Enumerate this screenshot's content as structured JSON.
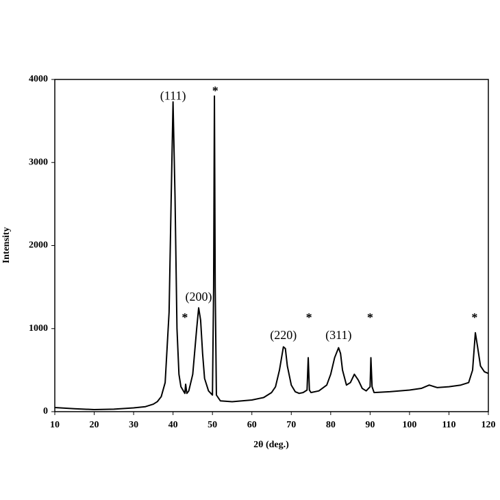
{
  "chart_data": {
    "type": "line",
    "xlabel": "2θ (deg.)",
    "ylabel": "Intensity",
    "x": [
      10,
      15,
      20,
      25,
      30,
      33,
      35,
      36,
      37,
      38,
      39,
      39.5,
      40,
      40.5,
      41,
      41.5,
      42,
      43,
      43.2,
      43.5,
      44,
      45,
      46,
      46.5,
      47,
      47.5,
      48,
      49,
      50,
      50.3,
      50.5,
      50.7,
      51,
      52,
      55,
      60,
      63,
      65,
      66,
      67,
      68,
      68.5,
      69,
      70,
      71,
      72,
      73,
      74,
      74.3,
      74.6,
      75,
      77,
      79,
      80,
      81,
      82,
      82.5,
      83,
      84,
      85,
      86,
      87,
      88,
      89,
      90,
      90.2,
      90.5,
      91,
      95,
      100,
      103,
      105,
      107,
      110,
      113,
      115,
      116,
      116.7,
      117.2,
      118,
      119,
      120
    ],
    "values": [
      50,
      35,
      25,
      30,
      45,
      60,
      90,
      120,
      180,
      350,
      1200,
      2500,
      3730,
      2600,
      1000,
      450,
      300,
      220,
      330,
      220,
      250,
      450,
      1000,
      1250,
      1100,
      700,
      400,
      250,
      200,
      1500,
      3800,
      1500,
      200,
      130,
      120,
      140,
      170,
      230,
      300,
      500,
      780,
      760,
      550,
      320,
      240,
      220,
      230,
      260,
      650,
      260,
      230,
      250,
      320,
      450,
      650,
      770,
      700,
      500,
      320,
      350,
      450,
      380,
      280,
      250,
      300,
      650,
      300,
      230,
      240,
      260,
      280,
      320,
      290,
      300,
      320,
      350,
      500,
      950,
      800,
      550,
      480,
      460
    ],
    "color": "#000000",
    "xlim": [
      10,
      120
    ],
    "xticks": [
      10,
      20,
      30,
      40,
      50,
      60,
      70,
      80,
      90,
      100,
      110,
      120
    ],
    "ylim": [
      0,
      4000
    ],
    "yticks": [
      0,
      1000,
      2000,
      3000,
      4000
    ],
    "annotations": [
      {
        "text": "(111)",
        "x": 40,
        "y": 3790
      },
      {
        "text": "*",
        "x": 50.7,
        "y": 3850
      },
      {
        "text": "(200)",
        "x": 46.5,
        "y": 1370
      },
      {
        "text": "*",
        "x": 43,
        "y": 1120
      },
      {
        "text": "(220)",
        "x": 68,
        "y": 910
      },
      {
        "text": "*",
        "x": 74.5,
        "y": 1120
      },
      {
        "text": "(311)",
        "x": 82,
        "y": 910
      },
      {
        "text": "*",
        "x": 90,
        "y": 1120
      },
      {
        "text": "*",
        "x": 116.5,
        "y": 1120
      }
    ]
  }
}
